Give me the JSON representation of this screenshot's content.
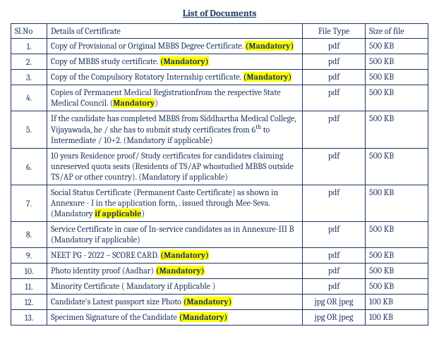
{
  "title": "List of Documents",
  "headers": {
    "slno": "Sl.No",
    "details": "Details of Certificate",
    "filetype": "File Type",
    "size": "Size of file"
  },
  "rows": [
    {
      "slno": "1.",
      "pre": "Copy of Provisional or Original MBBS Degree Certificate. ",
      "hl": "(Mandatory)",
      "post": "",
      "filetype": "pdf",
      "size": "500 KB"
    },
    {
      "slno": "2.",
      "pre": "Copy of MBBS study certificate. ",
      "hl": "(Mandatory)",
      "post": "",
      "filetype": "pdf",
      "size": "500 KB"
    },
    {
      "slno": "3.",
      "pre": "Copy of the Compulsory Rotatory Internship certificate. ",
      "hl": "(Mandatory)",
      "post": "",
      "filetype": "pdf",
      "size": "500 KB"
    },
    {
      "slno": "4.",
      "pre": "Copies of  Permanent Medical Registrationfrom the respective State Medical Council. (",
      "hl": "Mandatory",
      "post": ")",
      "filetype": "pdf",
      "size": "500 KB"
    },
    {
      "slno": "5.",
      "pre": "If the candidate has  completed MBBS from Siddhartha Medical College, Vijayawada, he / she has to submit study certificates from 6",
      "sup": "th",
      "pre2": " to Intermediate / 10+2. (Mandatory if applicable)",
      "hl": "",
      "post": "",
      "filetype": "pdf",
      "size": "500 KB"
    },
    {
      "slno": "6.",
      "pre": "10 years Residence proof/ Study certificates for candidates claiming unreserved quota seats (Residents of TS/AP whostudied MBBS outside TS/AP or  other country). (Mandatory if applicable)",
      "hl": "",
      "post": "",
      "filetype": "pdf",
      "size": "500 KB"
    },
    {
      "slno": "7.",
      "pre": "Social Status Certificate (Permanent Caste Certificate) as shown in Annexure - I in the application form, . issued through Mee-Seva. (Mandatory ",
      "hl": "if applicable",
      "post": ")",
      "filetype": "pdf",
      "size": "500 KB"
    },
    {
      "slno": "8.",
      "pre": "Service Certificate in case of In-service candidates as in Annexure-III B (Mandatory if applicable)",
      "hl": "",
      "post": "",
      "filetype": "pdf",
      "size": "500 KB"
    },
    {
      "slno": "9.",
      "pre": "NEET PG - 2022 – SCORE CARD. ",
      "hl": "(Mandatory)",
      "post": "",
      "filetype": "pdf",
      "size": "500 KB"
    },
    {
      "slno": "10.",
      "pre": "Photo identity proof (Aadhar) ",
      "hl": "(Mandatory)",
      "post": "",
      "filetype": "pdf",
      "size": "500 KB"
    },
    {
      "slno": "11.",
      "pre": "Minority Certificate ( Mandatory if Applicable )",
      "hl": "",
      "post": "",
      "filetype": "pdf",
      "size": "500 KB"
    },
    {
      "slno": "12.",
      "pre": "Candidate's Latest passport size Photo ",
      "hl": "(Mandatory)",
      "post": "",
      "filetype": "jpg OR jpeg",
      "size": "100 KB"
    },
    {
      "slno": "13.",
      "pre": "Specimen Signature of the Candidate ",
      "hl": "(Mandatory)",
      "post": "",
      "filetype": "jpg OR jpeg",
      "size": "100 KB"
    }
  ]
}
